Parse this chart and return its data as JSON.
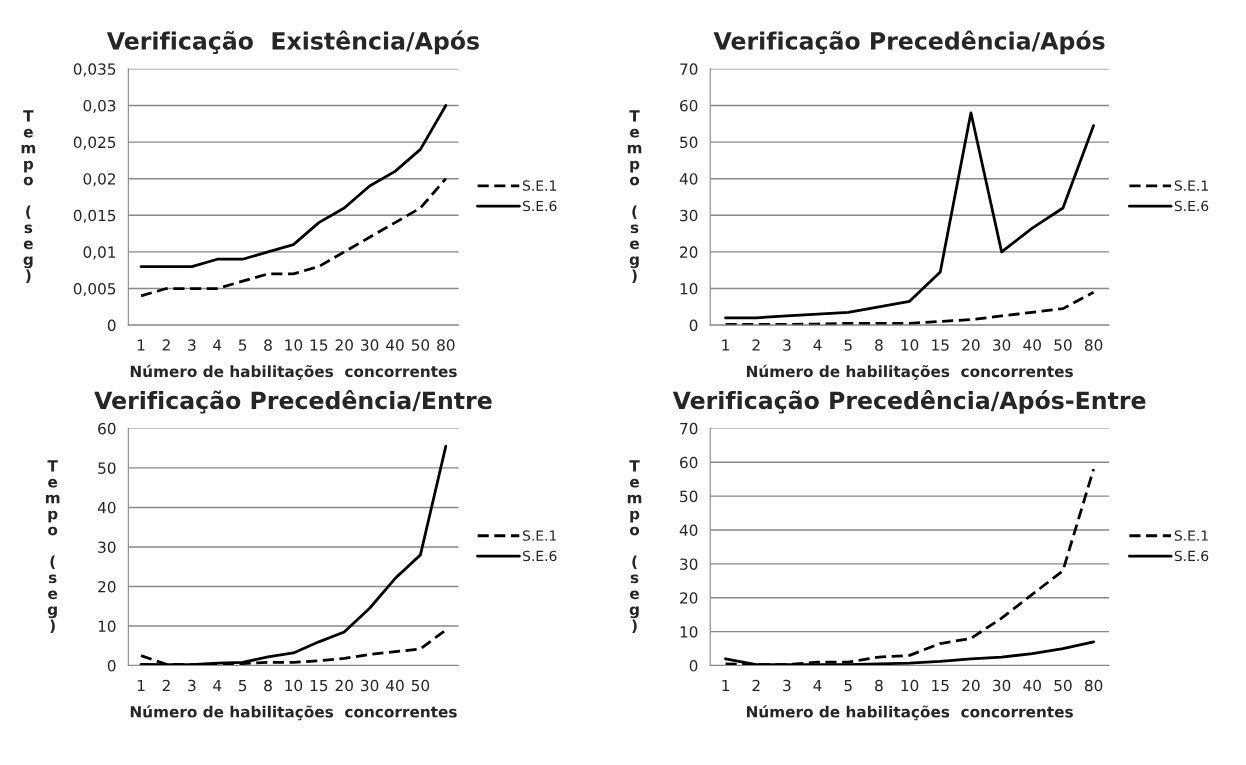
{
  "chart_data": [
    {
      "type": "line",
      "title": "Verificação  Existência/Após",
      "xlabel": "Número de habilitações  concorrentes",
      "ylabel": "Tempo (seg)",
      "categories": [
        "1",
        "2",
        "3",
        "4",
        "5",
        "8",
        "10",
        "15",
        "20",
        "30",
        "40",
        "50",
        "80"
      ],
      "series": [
        {
          "name": "S.E.1",
          "color": "#000000",
          "line_style": "dashed",
          "values": [
            0.004,
            0.005,
            0.005,
            0.005,
            0.006,
            0.007,
            0.007,
            0.008,
            0.01,
            0.012,
            0.014,
            0.016,
            0.02
          ]
        },
        {
          "name": "S.E.6",
          "color": "#000000",
          "line_style": "solid",
          "values": [
            0.008,
            0.008,
            0.008,
            0.009,
            0.009,
            0.01,
            0.011,
            0.014,
            0.016,
            0.019,
            0.021,
            0.024,
            0.03
          ]
        }
      ],
      "ylim": [
        0,
        0.035
      ],
      "yticks": [
        0,
        {
          "value": 0.005,
          "label": "0,005"
        },
        {
          "value": 0.01,
          "label": "0,01"
        },
        {
          "value": 0.015,
          "label": "0,015"
        },
        {
          "value": 0.02,
          "label": "0,02"
        },
        {
          "value": 0.025,
          "label": "0,025"
        },
        {
          "value": 0.03,
          "label": "0,03"
        },
        {
          "value": 0.035,
          "label": "0,035"
        }
      ],
      "grid": "y",
      "legend": "right"
    },
    {
      "type": "line",
      "title": "Verificação Precedência/Após",
      "xlabel": "Número de habilitações  concorrentes",
      "ylabel": "Tempo (seg)",
      "categories": [
        "1",
        "2",
        "3",
        "4",
        "5",
        "8",
        "10",
        "15",
        "20",
        "30",
        "40",
        "50",
        "80"
      ],
      "series": [
        {
          "name": "S.E.1",
          "color": "#000000",
          "line_style": "dashed",
          "values": [
            0.2,
            0.2,
            0.2,
            0.3,
            0.5,
            0.5,
            0.5,
            1,
            1.5,
            2.5,
            3.5,
            4.5,
            9
          ]
        },
        {
          "name": "S.E.6",
          "color": "#000000",
          "line_style": "solid",
          "values": [
            2,
            2,
            2.5,
            3,
            3.5,
            5,
            6.5,
            14.5,
            58,
            20,
            26.5,
            32,
            54.5
          ]
        }
      ],
      "ylim": [
        0,
        70
      ],
      "yticks": [
        0,
        10,
        20,
        30,
        40,
        50,
        60,
        70
      ],
      "grid": "y",
      "legend": "right"
    },
    {
      "type": "line",
      "title": "Verificação Precedência/Entre",
      "xlabel": "Número de habilitações  concorrentes",
      "ylabel": "Tempo (seg)",
      "categories": [
        "1",
        "2",
        "3",
        "4",
        "5",
        "8",
        "10",
        "15",
        "20",
        "30",
        "40",
        "50",
        null
      ],
      "series": [
        {
          "name": "S.E.1",
          "color": "#000000",
          "line_style": "dashed",
          "values": [
            2.5,
            0.3,
            0.2,
            0.3,
            0.5,
            0.8,
            0.8,
            1.2,
            1.8,
            2.8,
            3.5,
            4.2,
            9
          ]
        },
        {
          "name": "S.E.6",
          "color": "#000000",
          "line_style": "solid",
          "values": [
            0.3,
            0.2,
            0.2,
            0.6,
            0.8,
            2.2,
            3.2,
            6,
            8.5,
            14.5,
            22,
            28,
            55.5
          ]
        }
      ],
      "ylim": [
        0,
        60
      ],
      "yticks": [
        0,
        10,
        20,
        30,
        40,
        50,
        60
      ],
      "grid": "y",
      "legend": "right"
    },
    {
      "type": "line",
      "title": "Verificação Precedência/Após-Entre",
      "xlabel": "Número de habilitações  concorrentes",
      "ylabel": "Tempo (seg)",
      "categories": [
        "1",
        "2",
        "3",
        "4",
        "5",
        "8",
        "10",
        "15",
        "20",
        "30",
        "40",
        "50",
        "80"
      ],
      "series": [
        {
          "name": "S.E.1",
          "color": "#000000",
          "line_style": "dashed",
          "values": [
            0.5,
            0.3,
            0.3,
            1,
            1,
            2.5,
            3,
            6.5,
            8,
            14,
            21,
            28,
            58
          ]
        },
        {
          "name": "S.E.6",
          "color": "#000000",
          "line_style": "solid",
          "values": [
            2,
            0.3,
            0.3,
            0.3,
            0.3,
            0.5,
            0.7,
            1.2,
            2,
            2.5,
            3.5,
            5,
            7
          ]
        }
      ],
      "ylim": [
        0,
        70
      ],
      "yticks": [
        0,
        10,
        20,
        30,
        40,
        50,
        60,
        70
      ],
      "grid": "y",
      "legend": "right"
    }
  ]
}
